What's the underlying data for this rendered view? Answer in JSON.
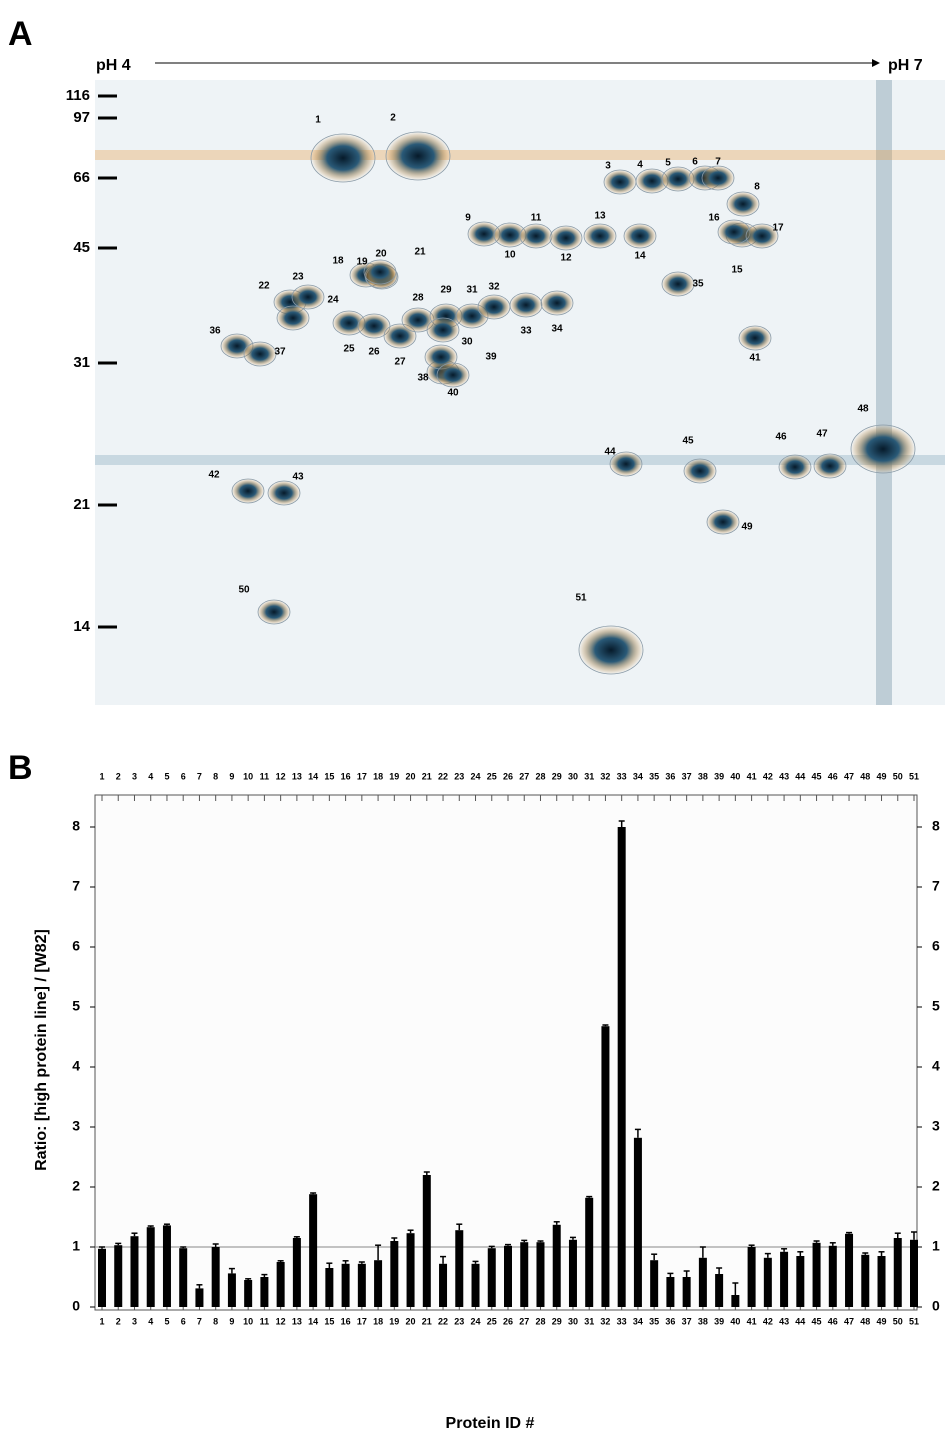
{
  "chart_data": [
    {
      "type": "gel",
      "panel": "A",
      "x_label_left": "pH 4",
      "x_label_right": "pH 7",
      "mw_markers": [
        116,
        97,
        66,
        45,
        31,
        21,
        14
      ],
      "spots": [
        1,
        2,
        3,
        4,
        5,
        6,
        7,
        8,
        9,
        10,
        11,
        12,
        13,
        14,
        15,
        16,
        17,
        18,
        19,
        20,
        21,
        22,
        23,
        24,
        25,
        26,
        27,
        28,
        29,
        30,
        31,
        32,
        33,
        34,
        35,
        36,
        37,
        38,
        39,
        40,
        41,
        42,
        43,
        44,
        45,
        46,
        47,
        48,
        49,
        50,
        51
      ]
    },
    {
      "type": "bar",
      "panel": "B",
      "y_label": "Ratio: [high protein line] / [W82]",
      "x_label": "Protein ID #",
      "categories": [
        "1",
        "2",
        "3",
        "4",
        "5",
        "6",
        "7",
        "8",
        "9",
        "10",
        "11",
        "12",
        "13",
        "14",
        "15",
        "16",
        "17",
        "18",
        "19",
        "20",
        "21",
        "22",
        "23",
        "24",
        "25",
        "26",
        "27",
        "28",
        "29",
        "30",
        "31",
        "32",
        "33",
        "34",
        "35",
        "36",
        "37",
        "38",
        "39",
        "40",
        "41",
        "42",
        "43",
        "44",
        "45",
        "46",
        "47",
        "48",
        "49",
        "50",
        "51"
      ],
      "values": [
        0.97,
        1.03,
        1.18,
        1.33,
        1.36,
        0.98,
        0.31,
        1.0,
        0.56,
        0.45,
        0.5,
        0.75,
        1.15,
        1.88,
        0.65,
        0.72,
        0.72,
        0.78,
        1.1,
        1.23,
        2.2,
        0.72,
        1.28,
        0.72,
        0.98,
        1.02,
        1.08,
        1.08,
        1.37,
        1.12,
        1.82,
        4.68,
        8.0,
        2.82,
        0.78,
        0.5,
        0.5,
        0.82,
        0.55,
        0.2,
        1.0,
        0.82,
        0.92,
        0.85,
        1.07,
        1.02,
        1.22,
        0.87,
        0.85,
        1.15,
        1.12
      ],
      "errors": [
        0.03,
        0.03,
        0.05,
        0.02,
        0.02,
        0.02,
        0.06,
        0.05,
        0.08,
        0.02,
        0.04,
        0.02,
        0.02,
        0.02,
        0.08,
        0.05,
        0.03,
        0.25,
        0.05,
        0.05,
        0.05,
        0.12,
        0.1,
        0.04,
        0.03,
        0.02,
        0.03,
        0.02,
        0.05,
        0.04,
        0.02,
        0.02,
        0.1,
        0.14,
        0.1,
        0.06,
        0.1,
        0.18,
        0.1,
        0.2,
        0.03,
        0.07,
        0.05,
        0.07,
        0.03,
        0.05,
        0.02,
        0.03,
        0.07,
        0.08,
        0.13
      ],
      "color": "#000000",
      "reference_line": 1,
      "ylim": [
        0,
        8.5
      ],
      "yticks": [
        0,
        1,
        2,
        3,
        4,
        5,
        6,
        7,
        8
      ]
    }
  ]
}
